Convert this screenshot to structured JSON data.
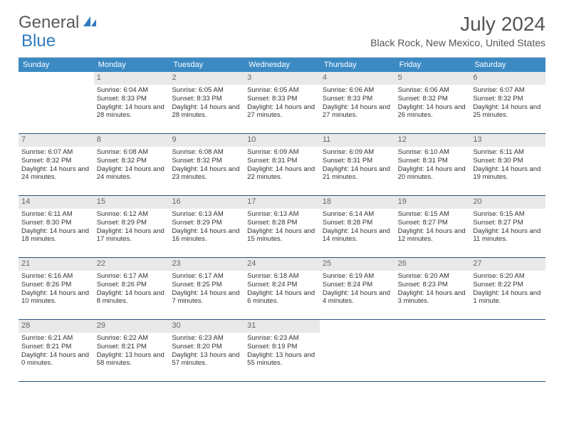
{
  "logo": {
    "text_gray": "General",
    "text_blue": "Blue"
  },
  "title": "July 2024",
  "location": "Black Rock, New Mexico, United States",
  "colors": {
    "header_bg": "#3B8AC4",
    "header_text": "#ffffff",
    "daynum_bg": "#e9e9e9",
    "week_border": "#29557a",
    "body_text": "#333333"
  },
  "weekdays": [
    "Sunday",
    "Monday",
    "Tuesday",
    "Wednesday",
    "Thursday",
    "Friday",
    "Saturday"
  ],
  "weeks": [
    [
      {
        "n": "",
        "empty": true
      },
      {
        "n": "1",
        "sunrise": "6:04 AM",
        "sunset": "8:33 PM",
        "daylight": "14 hours and 28 minutes."
      },
      {
        "n": "2",
        "sunrise": "6:05 AM",
        "sunset": "8:33 PM",
        "daylight": "14 hours and 28 minutes."
      },
      {
        "n": "3",
        "sunrise": "6:05 AM",
        "sunset": "8:33 PM",
        "daylight": "14 hours and 27 minutes."
      },
      {
        "n": "4",
        "sunrise": "6:06 AM",
        "sunset": "8:33 PM",
        "daylight": "14 hours and 27 minutes."
      },
      {
        "n": "5",
        "sunrise": "6:06 AM",
        "sunset": "8:32 PM",
        "daylight": "14 hours and 26 minutes."
      },
      {
        "n": "6",
        "sunrise": "6:07 AM",
        "sunset": "8:32 PM",
        "daylight": "14 hours and 25 minutes."
      }
    ],
    [
      {
        "n": "7",
        "sunrise": "6:07 AM",
        "sunset": "8:32 PM",
        "daylight": "14 hours and 24 minutes."
      },
      {
        "n": "8",
        "sunrise": "6:08 AM",
        "sunset": "8:32 PM",
        "daylight": "14 hours and 24 minutes."
      },
      {
        "n": "9",
        "sunrise": "6:08 AM",
        "sunset": "8:32 PM",
        "daylight": "14 hours and 23 minutes."
      },
      {
        "n": "10",
        "sunrise": "6:09 AM",
        "sunset": "8:31 PM",
        "daylight": "14 hours and 22 minutes."
      },
      {
        "n": "11",
        "sunrise": "6:09 AM",
        "sunset": "8:31 PM",
        "daylight": "14 hours and 21 minutes."
      },
      {
        "n": "12",
        "sunrise": "6:10 AM",
        "sunset": "8:31 PM",
        "daylight": "14 hours and 20 minutes."
      },
      {
        "n": "13",
        "sunrise": "6:11 AM",
        "sunset": "8:30 PM",
        "daylight": "14 hours and 19 minutes."
      }
    ],
    [
      {
        "n": "14",
        "sunrise": "6:11 AM",
        "sunset": "8:30 PM",
        "daylight": "14 hours and 18 minutes."
      },
      {
        "n": "15",
        "sunrise": "6:12 AM",
        "sunset": "8:29 PM",
        "daylight": "14 hours and 17 minutes."
      },
      {
        "n": "16",
        "sunrise": "6:13 AM",
        "sunset": "8:29 PM",
        "daylight": "14 hours and 16 minutes."
      },
      {
        "n": "17",
        "sunrise": "6:13 AM",
        "sunset": "8:28 PM",
        "daylight": "14 hours and 15 minutes."
      },
      {
        "n": "18",
        "sunrise": "6:14 AM",
        "sunset": "8:28 PM",
        "daylight": "14 hours and 14 minutes."
      },
      {
        "n": "19",
        "sunrise": "6:15 AM",
        "sunset": "8:27 PM",
        "daylight": "14 hours and 12 minutes."
      },
      {
        "n": "20",
        "sunrise": "6:15 AM",
        "sunset": "8:27 PM",
        "daylight": "14 hours and 11 minutes."
      }
    ],
    [
      {
        "n": "21",
        "sunrise": "6:16 AM",
        "sunset": "8:26 PM",
        "daylight": "14 hours and 10 minutes."
      },
      {
        "n": "22",
        "sunrise": "6:17 AM",
        "sunset": "8:26 PM",
        "daylight": "14 hours and 8 minutes."
      },
      {
        "n": "23",
        "sunrise": "6:17 AM",
        "sunset": "8:25 PM",
        "daylight": "14 hours and 7 minutes."
      },
      {
        "n": "24",
        "sunrise": "6:18 AM",
        "sunset": "8:24 PM",
        "daylight": "14 hours and 6 minutes."
      },
      {
        "n": "25",
        "sunrise": "6:19 AM",
        "sunset": "8:24 PM",
        "daylight": "14 hours and 4 minutes."
      },
      {
        "n": "26",
        "sunrise": "6:20 AM",
        "sunset": "8:23 PM",
        "daylight": "14 hours and 3 minutes."
      },
      {
        "n": "27",
        "sunrise": "6:20 AM",
        "sunset": "8:22 PM",
        "daylight": "14 hours and 1 minute."
      }
    ],
    [
      {
        "n": "28",
        "sunrise": "6:21 AM",
        "sunset": "8:21 PM",
        "daylight": "14 hours and 0 minutes."
      },
      {
        "n": "29",
        "sunrise": "6:22 AM",
        "sunset": "8:21 PM",
        "daylight": "13 hours and 58 minutes."
      },
      {
        "n": "30",
        "sunrise": "6:23 AM",
        "sunset": "8:20 PM",
        "daylight": "13 hours and 57 minutes."
      },
      {
        "n": "31",
        "sunrise": "6:23 AM",
        "sunset": "8:19 PM",
        "daylight": "13 hours and 55 minutes."
      },
      {
        "n": "",
        "empty": true
      },
      {
        "n": "",
        "empty": true
      },
      {
        "n": "",
        "empty": true
      }
    ]
  ],
  "labels": {
    "sunrise": "Sunrise:",
    "sunset": "Sunset:",
    "daylight": "Daylight:"
  }
}
